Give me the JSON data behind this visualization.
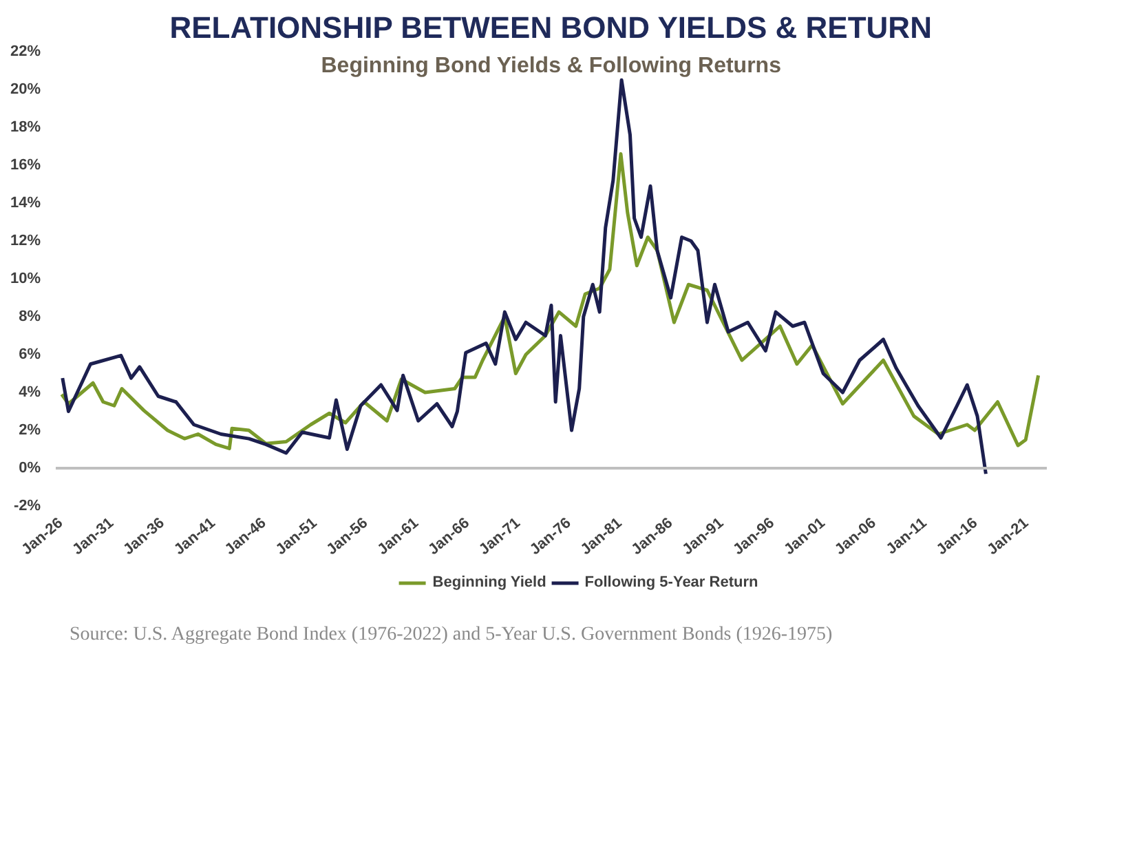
{
  "chart_data": {
    "type": "line",
    "title": "RELATIONSHIP BETWEEN BOND YIELDS & RETURN",
    "subtitle": "Beginning Bond Yields & Following Returns",
    "annotations": [
      "Source: U.S. Aggregate Bond Index (1976-2022) and 5-Year U.S. Government Bonds (1926-1975)"
    ],
    "xlim": [
      "1925-07",
      "2023-01"
    ],
    "xticks": [
      {
        "value": "1926-01",
        "label": "Jan-26"
      },
      {
        "value": "1931-01",
        "label": "Jan-31"
      },
      {
        "value": "1936-01",
        "label": "Jan-36"
      },
      {
        "value": "1941-01",
        "label": "Jan-41"
      },
      {
        "value": "1946-01",
        "label": "Jan-46"
      },
      {
        "value": "1951-01",
        "label": "Jan-51"
      },
      {
        "value": "1956-01",
        "label": "Jan-56"
      },
      {
        "value": "1961-01",
        "label": "Jan-61"
      },
      {
        "value": "1966-01",
        "label": "Jan-66"
      },
      {
        "value": "1971-01",
        "label": "Jan-71"
      },
      {
        "value": "1976-01",
        "label": "Jan-76"
      },
      {
        "value": "1981-01",
        "label": "Jan-81"
      },
      {
        "value": "1986-01",
        "label": "Jan-86"
      },
      {
        "value": "1991-01",
        "label": "Jan-91"
      },
      {
        "value": "1996-01",
        "label": "Jan-96"
      },
      {
        "value": "2001-01",
        "label": "Jan-01"
      },
      {
        "value": "2006-01",
        "label": "Jan-06"
      },
      {
        "value": "2011-01",
        "label": "Jan-11"
      },
      {
        "value": "2016-01",
        "label": "Jan-16"
      },
      {
        "value": "2021-01",
        "label": "Jan-21"
      }
    ],
    "ylim": [
      -2,
      22
    ],
    "yticks": [
      {
        "value": -2,
        "label": "-2%"
      },
      {
        "value": 0,
        "label": "0%"
      },
      {
        "value": 2,
        "label": "2%"
      },
      {
        "value": 4,
        "label": "4%"
      },
      {
        "value": 6,
        "label": "6%"
      },
      {
        "value": 8,
        "label": "8%"
      },
      {
        "value": 10,
        "label": "10%"
      },
      {
        "value": 12,
        "label": "12%"
      },
      {
        "value": 14,
        "label": "14%"
      },
      {
        "value": 16,
        "label": "16%"
      },
      {
        "value": 18,
        "label": "18%"
      },
      {
        "value": 20,
        "label": "20%"
      },
      {
        "value": 22,
        "label": "22%"
      }
    ],
    "ref_lines": [
      {
        "axis": "y",
        "value": 0,
        "color": "#bfbfbf"
      }
    ],
    "grid": false,
    "legend": "bottom",
    "line_style": "solid",
    "series": [
      {
        "name": "Beginning Yield",
        "color": "#7a9a2a",
        "x": [
          "1926-02",
          "1926-10",
          "1929-03",
          "1930-03",
          "1931-04",
          "1932-01",
          "1934-03",
          "1936-07",
          "1938-03",
          "1939-07",
          "1941-04",
          "1942-08",
          "1942-11",
          "1944-07",
          "1946-03",
          "1948-03",
          "1950-08",
          "1952-06",
          "1954-01",
          "1955-11",
          "1958-02",
          "1959-07",
          "1961-11",
          "1964-10",
          "1965-07",
          "1966-10",
          "1967-07",
          "1969-09",
          "1970-10",
          "1971-10",
          "1973-09",
          "1975-01",
          "1976-09",
          "1977-08",
          "1979-01",
          "1980-01",
          "1981-02",
          "1981-10",
          "1982-09",
          "1983-10",
          "1984-09",
          "1986-05",
          "1987-10",
          "1989-08",
          "1993-01",
          "1996-10",
          "1998-06",
          "1999-12",
          "2002-12",
          "2006-12",
          "2009-12",
          "2012-05",
          "2015-03",
          "2015-12",
          "2018-03",
          "2020-03",
          "2020-12",
          "2022-03"
        ],
        "values": [
          3.9,
          3.4,
          4.5,
          3.5,
          3.3,
          4.2,
          3.05,
          2.0,
          1.56,
          1.8,
          1.26,
          1.04,
          2.1,
          2.0,
          1.3,
          1.4,
          2.3,
          2.9,
          2.4,
          3.5,
          2.5,
          4.7,
          4.0,
          4.2,
          4.8,
          4.8,
          5.7,
          8.0,
          5.0,
          6.0,
          7.0,
          8.25,
          7.5,
          9.2,
          9.5,
          10.5,
          16.6,
          13.5,
          10.7,
          12.2,
          11.5,
          7.7,
          9.7,
          9.4,
          5.7,
          7.5,
          5.5,
          6.5,
          3.4,
          5.7,
          2.75,
          1.8,
          2.3,
          2.0,
          3.5,
          1.2,
          1.5,
          4.9
        ]
      },
      {
        "name": "Following 5-Year Return",
        "color": "#1c1f4f",
        "x": [
          "1926-03",
          "1926-10",
          "1928-12",
          "1931-12",
          "1932-12",
          "1933-10",
          "1935-08",
          "1937-05",
          "1939-02",
          "1941-10",
          "1944-07",
          "1946-03",
          "1948-03",
          "1949-10",
          "1952-06",
          "1953-02",
          "1954-03",
          "1955-07",
          "1957-07",
          "1959-02",
          "1959-09",
          "1961-03",
          "1963-01",
          "1964-07",
          "1965-01",
          "1965-11",
          "1967-11",
          "1968-10",
          "1969-09",
          "1970-10",
          "1971-10",
          "1973-09",
          "1974-04",
          "1974-09",
          "1975-03",
          "1976-04",
          "1977-01",
          "1977-06",
          "1978-05",
          "1979-01",
          "1979-08",
          "1980-05",
          "1981-03",
          "1982-01",
          "1982-06",
          "1983-02",
          "1984-01",
          "1984-09",
          "1986-01",
          "1987-02",
          "1988-01",
          "1988-09",
          "1989-08",
          "1990-05",
          "1991-09",
          "1993-08",
          "1995-05",
          "1996-05",
          "1998-01",
          "1999-03",
          "2001-01",
          "2002-12",
          "2004-08",
          "2006-12",
          "2008-03",
          "2010-05",
          "2012-08",
          "2014-03",
          "2015-03",
          "2016-03",
          "2017-01"
        ],
        "values": [
          4.76,
          3.0,
          5.5,
          5.95,
          4.76,
          5.35,
          3.8,
          3.5,
          2.3,
          1.8,
          1.56,
          1.26,
          0.8,
          1.9,
          1.6,
          3.6,
          1.0,
          3.3,
          4.4,
          3.05,
          4.9,
          2.5,
          3.4,
          2.2,
          3.0,
          6.1,
          6.6,
          5.5,
          8.25,
          6.8,
          7.7,
          7.0,
          8.6,
          3.5,
          7.0,
          2.0,
          4.2,
          8.0,
          9.7,
          8.25,
          12.7,
          15.2,
          20.5,
          17.6,
          13.2,
          12.2,
          14.9,
          11.5,
          9.0,
          12.2,
          12.0,
          11.5,
          7.7,
          9.7,
          7.2,
          7.7,
          6.2,
          8.25,
          7.5,
          7.7,
          5.0,
          4.0,
          5.7,
          6.8,
          5.3,
          3.3,
          1.6,
          3.3,
          4.4,
          2.75,
          -0.3
        ]
      }
    ]
  }
}
